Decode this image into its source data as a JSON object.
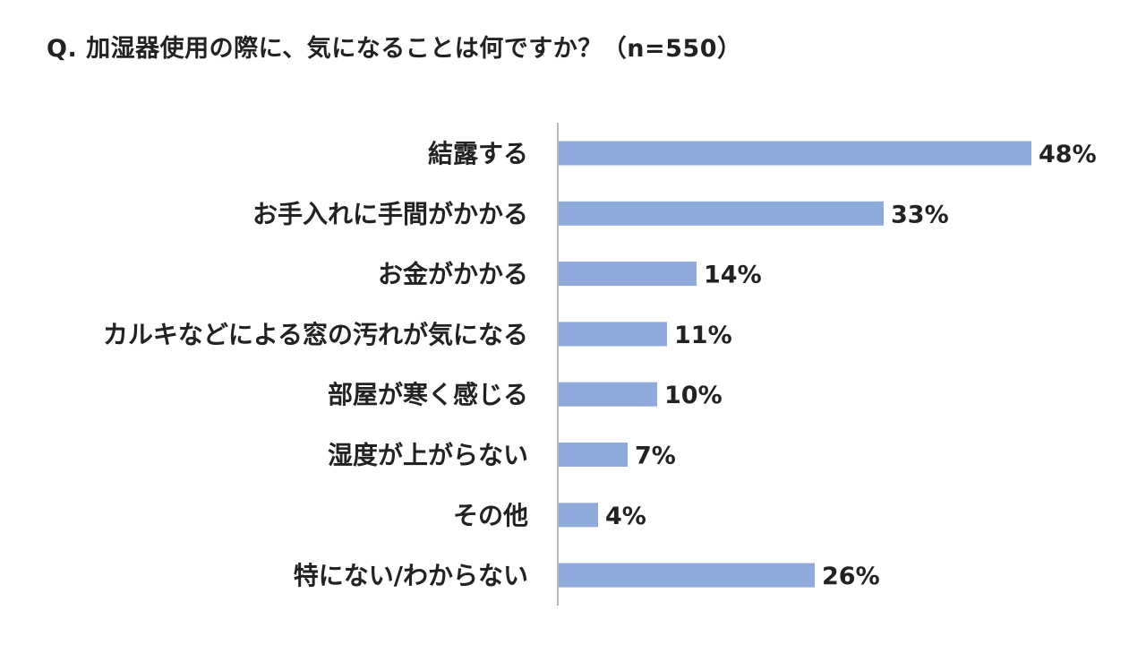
{
  "title": "Q. 加湿器使用の際に、気になることは何ですか？（n=550）",
  "chart_data": {
    "type": "bar",
    "orientation": "horizontal",
    "categories": [
      "結露する",
      "お手入れに手間がかかる",
      "お金がかかる",
      "カルキなどによる窓の汚れが気になる",
      "部屋が寒く感じる",
      "湿度が上がらない",
      "その他",
      "特にない/わからない"
    ],
    "values": [
      48,
      33,
      14,
      11,
      10,
      7,
      4,
      26
    ],
    "value_labels": [
      "48%",
      "33%",
      "14%",
      "11%",
      "10%",
      "7%",
      "4%",
      "26%"
    ],
    "unit": "%",
    "bar_color": "#8eaadb",
    "axis_color": "#888888",
    "grid": false,
    "legend": "none"
  }
}
